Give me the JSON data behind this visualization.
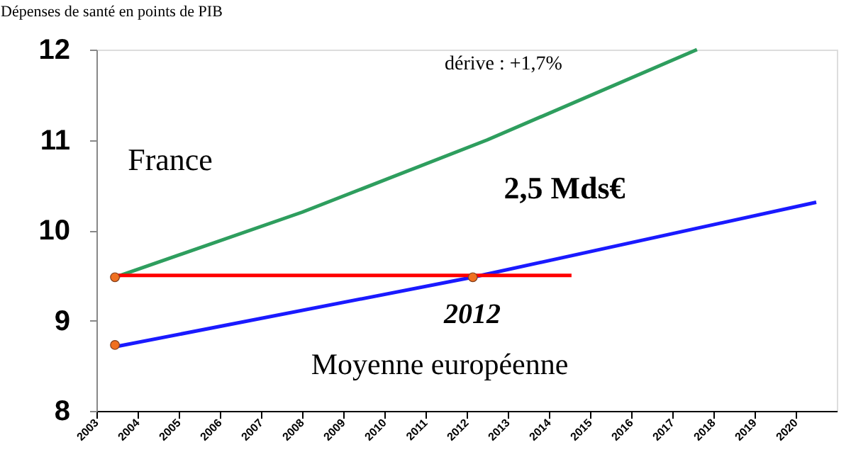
{
  "chart_data": {
    "type": "line",
    "ylabel": "Dépenses de santé en points de PIB",
    "xlim": [
      2003,
      2021
    ],
    "xticks": [
      2003,
      2004,
      2005,
      2006,
      2007,
      2008,
      2009,
      2010,
      2011,
      2012,
      2013,
      2014,
      2015,
      2016,
      2017,
      2018,
      2019,
      2020
    ],
    "ylim": [
      8,
      12
    ],
    "yticks": [
      8,
      9,
      10,
      11,
      12
    ],
    "grid": false,
    "series": [
      {
        "color": "#2e9e5e",
        "x": [
          2003.45,
          2008,
          2012.5,
          2017.6
        ],
        "values": [
          9.48,
          10.2,
          11.0,
          12.0
        ]
      },
      {
        "color": "#1a1aff",
        "x": [
          2003.45,
          2012.15,
          2020.5
        ],
        "values": [
          8.71,
          9.48,
          10.31
        ]
      },
      {
        "color": "#ff0000",
        "x": [
          2003.45,
          2014.55
        ],
        "values": [
          9.5,
          9.5
        ]
      },
      {
        "type": "scatter",
        "color": "#f07020",
        "x": [
          2003.45,
          2003.45,
          2012.15
        ],
        "values": [
          9.48,
          8.73,
          9.48
        ]
      }
    ],
    "annotations": [
      "France",
      "dérive : +1,7%",
      "2,5 Mds€",
      "2012",
      "Moyenne européenne"
    ]
  }
}
